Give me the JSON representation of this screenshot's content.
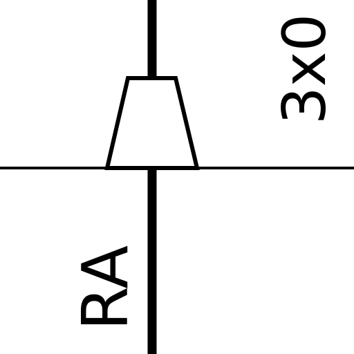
{
  "labels": {
    "right_label": "3x0",
    "bottom_left_label": "RA"
  },
  "colors": {
    "stroke": "#000000",
    "background": "#ffffff"
  }
}
